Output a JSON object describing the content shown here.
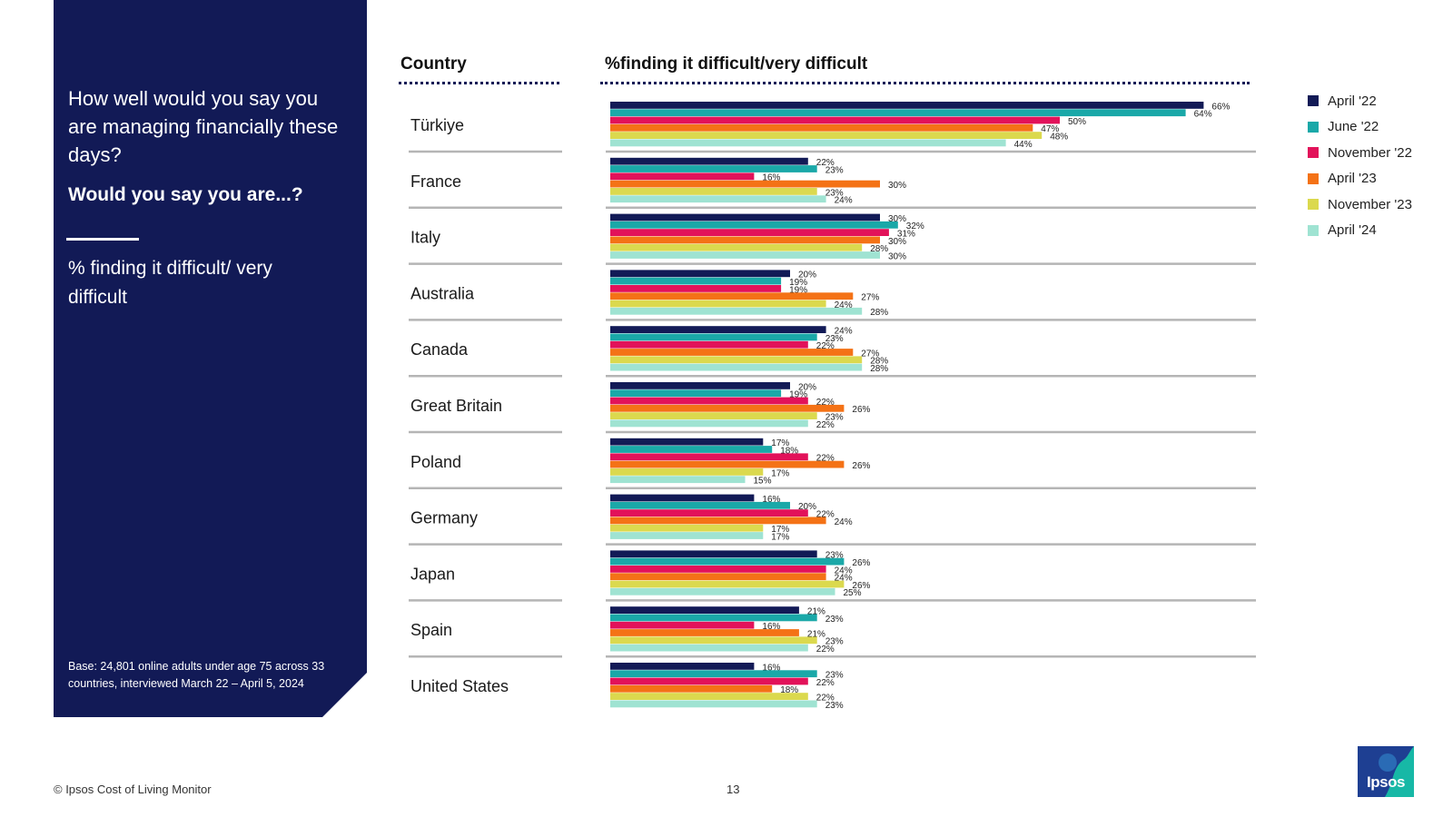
{
  "side": {
    "question": "How well would you say you are managing financially these days?",
    "subquestion": "Would you say you are...?",
    "metric": "% finding it difficult/ very difficult",
    "base": "Base: 24,801 online adults under age 75 across 33 countries, interviewed March 22 – April 5, 2024"
  },
  "headers": {
    "country": "Country",
    "metric": "%finding it difficult/very difficult"
  },
  "footer": {
    "copyright": "© Ipsos Cost of Living Monitor",
    "page": "13"
  },
  "logo": {
    "text": "Ipsos"
  },
  "chart_data": {
    "type": "bar",
    "orientation": "horizontal",
    "value_suffix": "%",
    "xlim": [
      0,
      70
    ],
    "categories": [
      "Türkiye",
      "France",
      "Italy",
      "Australia",
      "Canada",
      "Great Britain",
      "Poland",
      "Germany",
      "Japan",
      "Spain",
      "United States"
    ],
    "series": [
      {
        "name": "April '22",
        "color": "#121a56",
        "values": [
          66,
          22,
          30,
          20,
          24,
          20,
          17,
          16,
          23,
          21,
          16
        ]
      },
      {
        "name": "June '22",
        "color": "#1aa8a8",
        "values": [
          64,
          23,
          32,
          19,
          23,
          19,
          18,
          20,
          26,
          23,
          23
        ]
      },
      {
        "name": "November '22",
        "color": "#e2125a",
        "values": [
          50,
          16,
          31,
          19,
          22,
          22,
          22,
          22,
          24,
          16,
          22
        ]
      },
      {
        "name": "April '23",
        "color": "#f47216",
        "values": [
          47,
          30,
          30,
          27,
          27,
          26,
          26,
          24,
          24,
          21,
          18
        ]
      },
      {
        "name": "November '23",
        "color": "#dbd94e",
        "values": [
          48,
          23,
          28,
          24,
          28,
          23,
          17,
          17,
          26,
          23,
          22
        ]
      },
      {
        "name": "April '24",
        "color": "#9fe3d2",
        "values": [
          44,
          24,
          30,
          28,
          28,
          22,
          15,
          17,
          25,
          22,
          23
        ]
      }
    ]
  }
}
